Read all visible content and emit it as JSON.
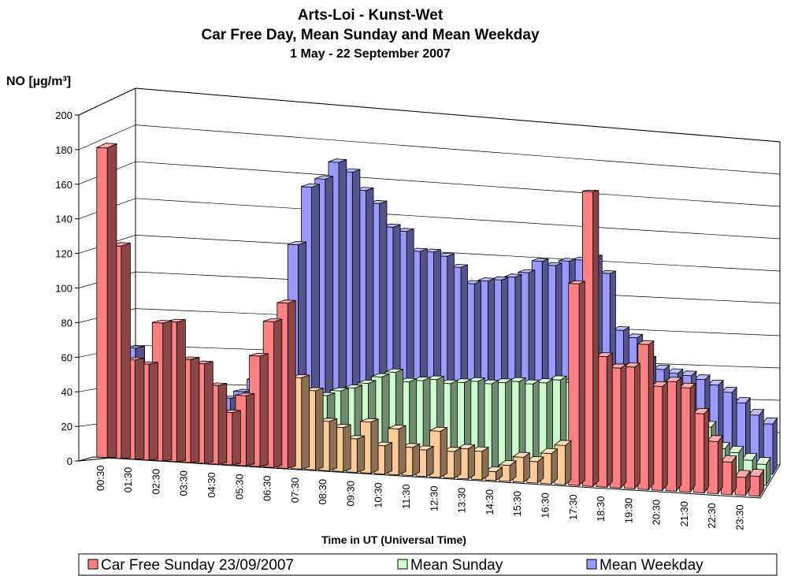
{
  "chart_data": {
    "type": "bar3d",
    "title": "Arts-Loi  -  Kunst-Wet",
    "subtitle": "Car Free Day, Mean Sunday and Mean Weekday",
    "period": "1 May - 22 September 2007",
    "y_label": "NO  [µg/m³]",
    "x_label": "Time in UT (Universal Time)",
    "categories": [
      "00:30",
      null,
      "01:30",
      null,
      "02:30",
      null,
      "03:30",
      null,
      "04:30",
      null,
      "05:30",
      null,
      "06:30",
      null,
      "07:30",
      null,
      "08:30",
      null,
      "09:30",
      null,
      "10:30",
      null,
      "11:30",
      null,
      "12:30",
      null,
      "13:30",
      null,
      "14:30",
      null,
      "15:30",
      null,
      "16:30",
      null,
      "17:30",
      null,
      "18:30",
      null,
      "19:30",
      null,
      "20:30",
      null,
      "21:30",
      null,
      "22:30",
      null,
      "23:30",
      null
    ],
    "series": [
      {
        "name": "Mean Weekday",
        "color": "#9999ff",
        "values": [
          60,
          50,
          42,
          38,
          35,
          33,
          32,
          34,
          38,
          45,
          55,
          78,
          122,
          155,
          160,
          170,
          165,
          155,
          148,
          135,
          133,
          122,
          122,
          120,
          114,
          105,
          107,
          108,
          110,
          113,
          120,
          118,
          121,
          122,
          124,
          115,
          82,
          78,
          65,
          60,
          58,
          57,
          55,
          52,
          48,
          42,
          35,
          30
        ]
      },
      {
        "name": "Mean Sunday",
        "color": "#ccffcc",
        "values": [
          40,
          35,
          30,
          28,
          25,
          22,
          20,
          18,
          17,
          18,
          20,
          22,
          25,
          30,
          35,
          40,
          43,
          45,
          48,
          52,
          55,
          50,
          51,
          52,
          50,
          51,
          52,
          51,
          52,
          53,
          52,
          53,
          55,
          54,
          52,
          50,
          50,
          48,
          46,
          44,
          42,
          40,
          37,
          32,
          20,
          18,
          14,
          12
        ]
      },
      {
        "name": "Car Free Sunday 23/09/2007",
        "color": "#ff8080",
        "colors": [
          "#ff8080",
          "#ff8080",
          "#ff8080",
          "#ff8080",
          "#ff8080",
          "#ff8080",
          "#ff8080",
          "#ff8080",
          "#ff8080",
          "#ff8080",
          "#ff8080",
          "#ff8080",
          "#ff8080",
          "#ff8080",
          "#ffcc99",
          "#ffcc99",
          "#ffcc99",
          "#ffcc99",
          "#ffcc99",
          "#ffcc99",
          "#ffcc99",
          "#ffcc99",
          "#ffcc99",
          "#ffcc99",
          "#ffcc99",
          "#ffcc99",
          "#ffcc99",
          "#ffcc99",
          "#ffcc99",
          "#ffcc99",
          "#ffcc99",
          "#ffcc99",
          "#ffcc99",
          "#ffcc99",
          "#ff8080",
          "#ff8080",
          "#ff8080",
          "#ff8080",
          "#ff8080",
          "#ff8080",
          "#ff8080",
          "#ff8080",
          "#ff8080",
          "#ff8080",
          "#ff8080",
          "#ff8080",
          "#ff8080",
          "#ff8080"
        ],
        "values": [
          178,
          122,
          57,
          55,
          79,
          80,
          59,
          57,
          45,
          30,
          40,
          63,
          83,
          94,
          52,
          45,
          28,
          25,
          19,
          29,
          16,
          26,
          16,
          15,
          26,
          15,
          17,
          16,
          5,
          9,
          14,
          12,
          17,
          22,
          113,
          165,
          73,
          67,
          68,
          81,
          58,
          61,
          58,
          44,
          29,
          18,
          10,
          11
        ]
      }
    ],
    "legend_order": [
      2,
      1,
      0
    ],
    "legend": "bottom",
    "ylim": [
      0,
      200
    ],
    "yticks": [
      0,
      20,
      40,
      60,
      80,
      100,
      120,
      140,
      160,
      180,
      200
    ],
    "grid": true
  }
}
